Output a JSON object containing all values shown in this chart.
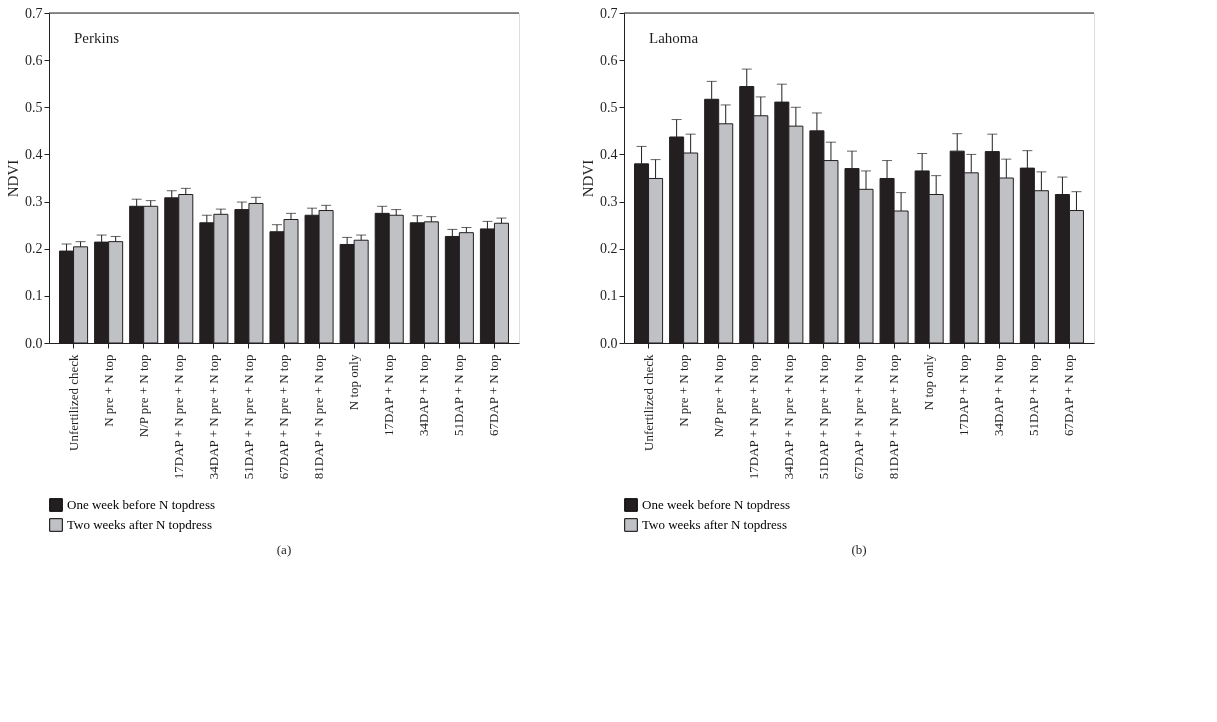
{
  "chart_data": [
    {
      "type": "bar",
      "ylabel": "NDVI",
      "annotations": [
        "Perkins",
        "(a)"
      ],
      "categories": [
        "Unfertilized check",
        "N pre + N top",
        "N/P pre + N top",
        "17DAP + N pre + N top",
        "34DAP + N pre + N top",
        "51DAP + N pre + N top",
        "67DAP + N pre + N top",
        "81DAP + N pre + N top",
        "N top only",
        "17DAP + N top",
        "34DAP + N top",
        "51DAP + N top",
        "67DAP + N top"
      ],
      "series": [
        {
          "name": "One week before N topdress",
          "color": "#231f20",
          "values": [
            0.195,
            0.214,
            0.29,
            0.308,
            0.255,
            0.283,
            0.236,
            0.271,
            0.209,
            0.275,
            0.255,
            0.226,
            0.242
          ],
          "errors": [
            [
              0.195,
              0.21
            ],
            [
              0.214,
              0.229
            ],
            [
              0.29,
              0.305
            ],
            [
              0.308,
              0.323
            ],
            [
              0.255,
              0.271
            ],
            [
              0.283,
              0.299
            ],
            [
              0.236,
              0.251
            ],
            [
              0.271,
              0.286
            ],
            [
              0.209,
              0.224
            ],
            [
              0.275,
              0.29
            ],
            [
              0.255,
              0.27
            ],
            [
              0.226,
              0.241
            ],
            [
              0.242,
              0.258
            ]
          ]
        },
        {
          "name": "Two weeks after N topdress",
          "color": "#c0c1c4",
          "values": [
            0.204,
            0.215,
            0.29,
            0.315,
            0.273,
            0.296,
            0.262,
            0.281,
            0.218,
            0.271,
            0.257,
            0.234,
            0.254
          ],
          "errors": [
            [
              0.204,
              0.215
            ],
            [
              0.215,
              0.226
            ],
            [
              0.29,
              0.302
            ],
            [
              0.315,
              0.328
            ],
            [
              0.273,
              0.284
            ],
            [
              0.296,
              0.309
            ],
            [
              0.262,
              0.275
            ],
            [
              0.281,
              0.292
            ],
            [
              0.218,
              0.229
            ],
            [
              0.271,
              0.283
            ],
            [
              0.257,
              0.268
            ],
            [
              0.234,
              0.245
            ],
            [
              0.254,
              0.265
            ]
          ]
        }
      ],
      "ylim": [
        0,
        0.7
      ],
      "yticks": [
        "0.0",
        0.1,
        0.2,
        0.3,
        0.4,
        0.5,
        0.6,
        0.7
      ],
      "grid": false,
      "legend": "bottom"
    },
    {
      "type": "bar",
      "ylabel": "NDVI",
      "annotations": [
        "Lahoma",
        "(b)"
      ],
      "categories": [
        "Unfertilized check",
        "N pre + N top",
        "N/P pre + N top",
        "17DAP + N pre + N top",
        "34DAP + N pre + N top",
        "51DAP + N pre + N top",
        "67DAP + N pre + N top",
        "81DAP + N pre + N top",
        "N top only",
        "17DAP + N top",
        "34DAP + N top",
        "51DAP + N top",
        "67DAP + N top"
      ],
      "series": [
        {
          "name": "One week before N topdress",
          "color": "#231f20",
          "values": [
            0.38,
            0.437,
            0.517,
            0.544,
            0.511,
            0.45,
            0.37,
            0.349,
            0.365,
            0.407,
            0.406,
            0.371,
            0.315
          ],
          "errors": [
            [
              0.38,
              0.417
            ],
            [
              0.437,
              0.474
            ],
            [
              0.517,
              0.555
            ],
            [
              0.544,
              0.581
            ],
            [
              0.511,
              0.549
            ],
            [
              0.45,
              0.488
            ],
            [
              0.37,
              0.407
            ],
            [
              0.349,
              0.387
            ],
            [
              0.365,
              0.402
            ],
            [
              0.407,
              0.444
            ],
            [
              0.406,
              0.443
            ],
            [
              0.371,
              0.408
            ],
            [
              0.315,
              0.352
            ]
          ]
        },
        {
          "name": "Two weeks after N topdress",
          "color": "#c0c1c4",
          "values": [
            0.349,
            0.403,
            0.465,
            0.482,
            0.46,
            0.387,
            0.326,
            0.28,
            0.315,
            0.361,
            0.35,
            0.323,
            0.281
          ],
          "errors": [
            [
              0.349,
              0.389
            ],
            [
              0.403,
              0.443
            ],
            [
              0.465,
              0.505
            ],
            [
              0.482,
              0.522
            ],
            [
              0.46,
              0.5
            ],
            [
              0.387,
              0.426
            ],
            [
              0.326,
              0.365
            ],
            [
              0.28,
              0.319
            ],
            [
              0.315,
              0.355
            ],
            [
              0.361,
              0.4
            ],
            [
              0.35,
              0.39
            ],
            [
              0.323,
              0.363
            ],
            [
              0.281,
              0.321
            ]
          ]
        }
      ],
      "ylim": [
        0,
        0.7
      ],
      "yticks": [
        "0.0",
        0.1,
        0.2,
        0.3,
        0.4,
        0.5,
        0.6,
        0.7
      ],
      "grid": false,
      "legend": "bottom"
    }
  ]
}
